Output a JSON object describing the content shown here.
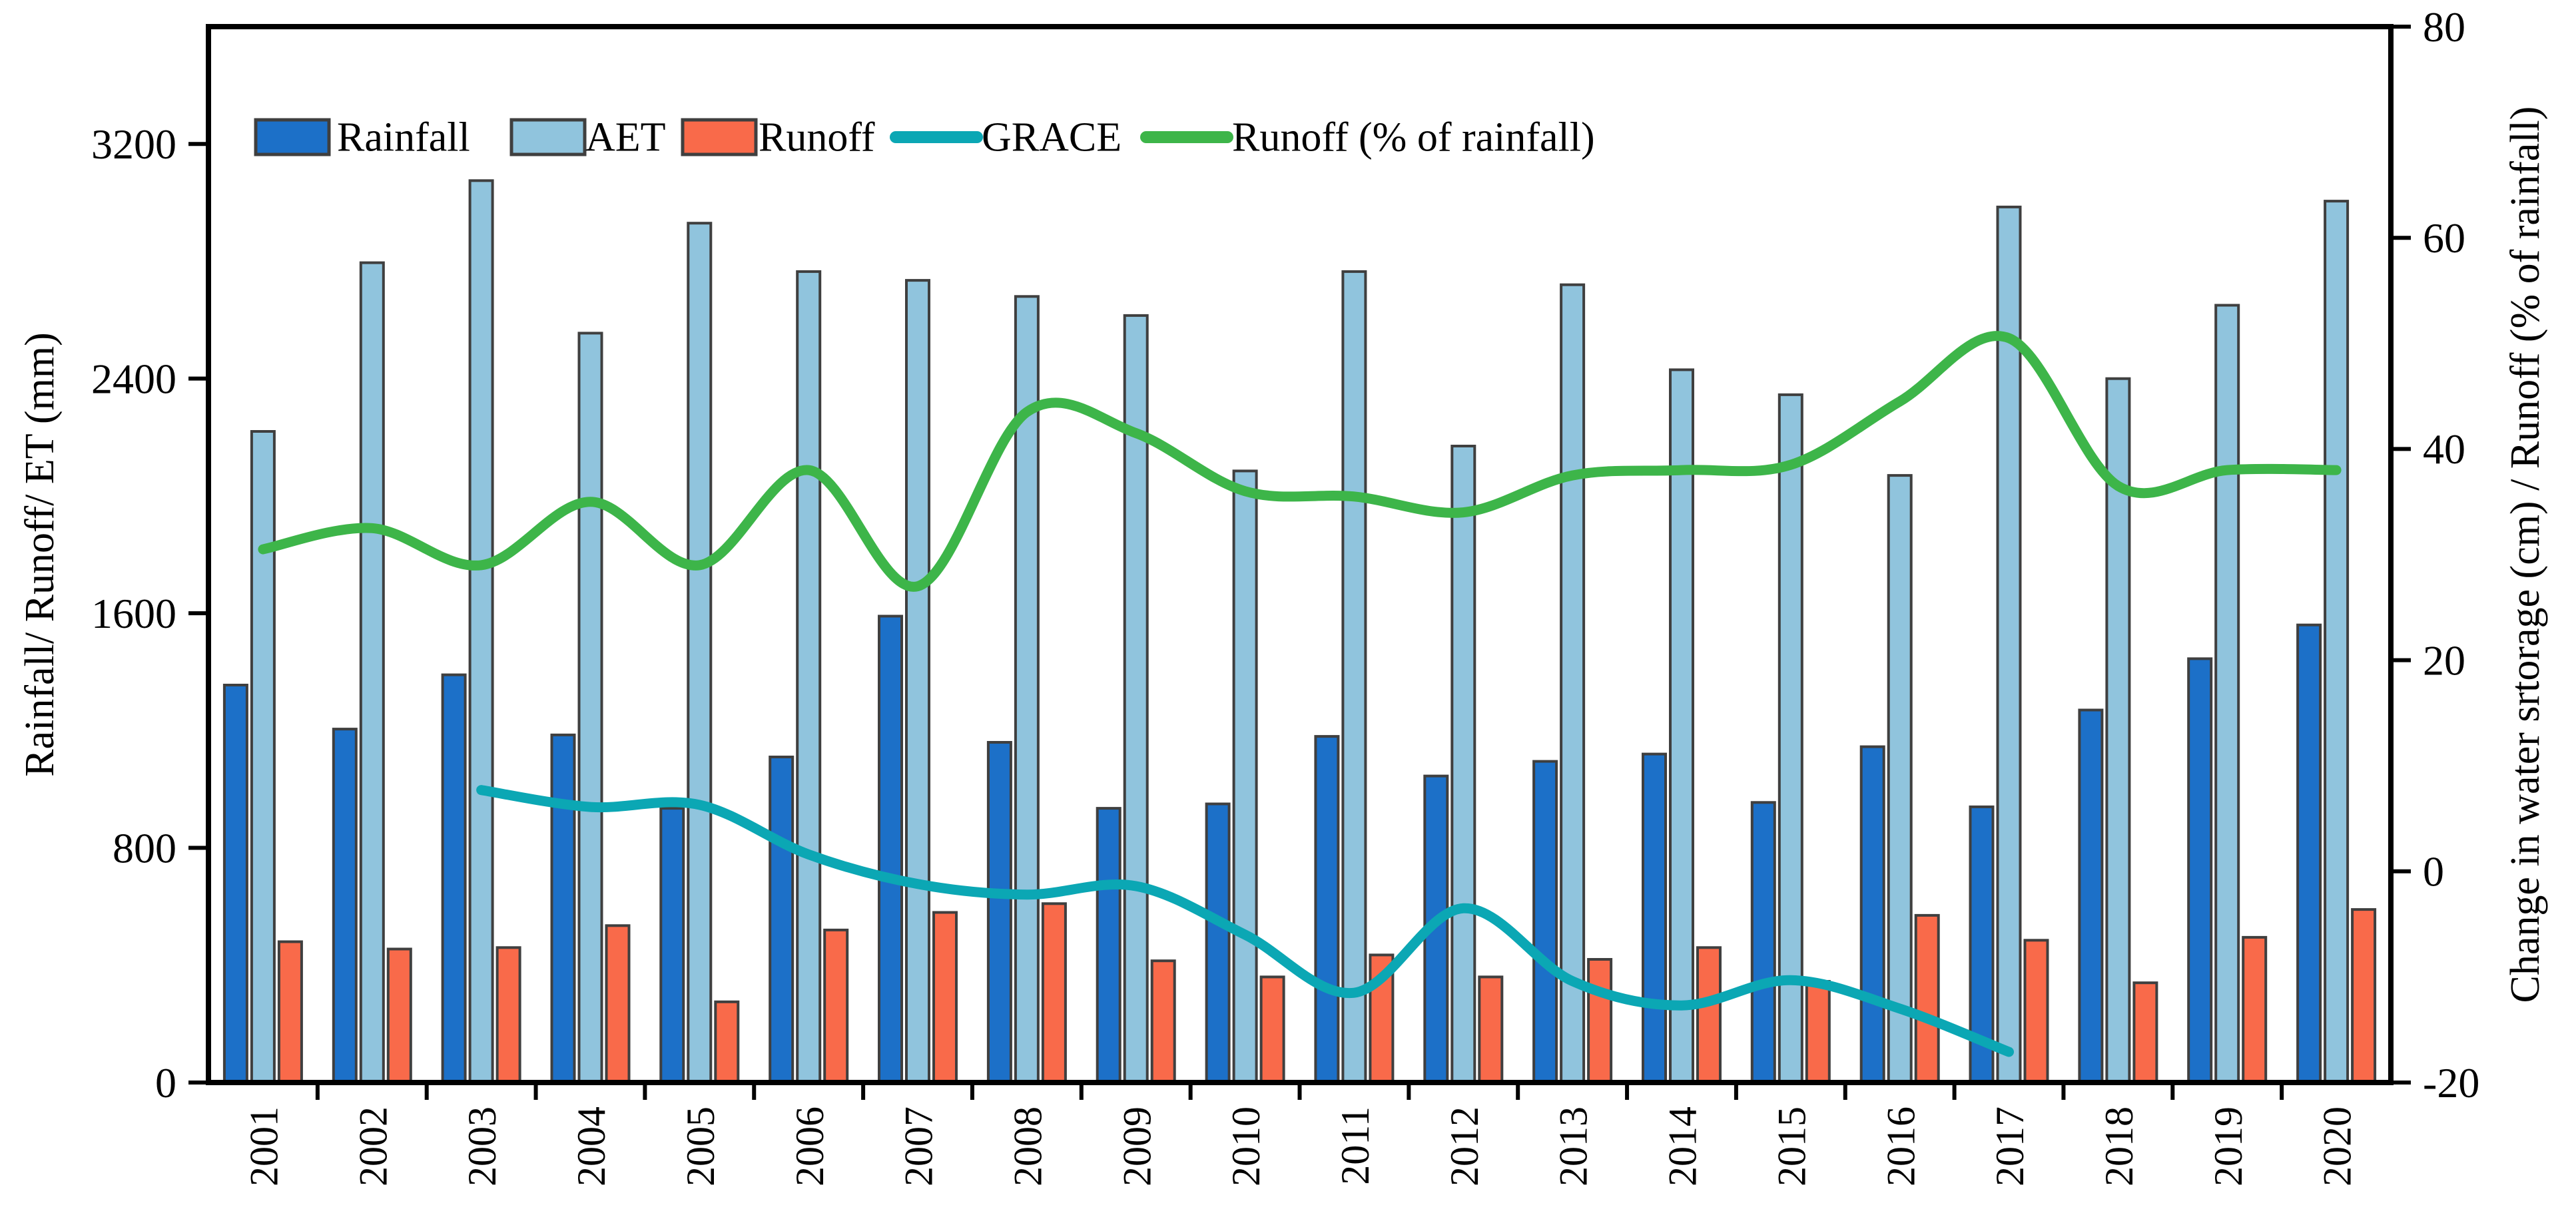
{
  "chart_data": {
    "type": "combo",
    "title": "",
    "categories": [
      "2001",
      "2002",
      "2003",
      "2004",
      "2005",
      "2006",
      "2007",
      "2008",
      "2009",
      "2010",
      "2011",
      "2012",
      "2013",
      "2014",
      "2015",
      "2016",
      "2017",
      "2018",
      "2019",
      "2020"
    ],
    "series": [
      {
        "name": "Rainfall",
        "type": "bar",
        "axis": "left",
        "color": "#1c70c8",
        "border_color": "#3f3f3f",
        "values": [
          1355,
          1205,
          1390,
          1185,
          935,
          1110,
          1590,
          1160,
          935,
          950,
          1180,
          1045,
          1095,
          1120,
          955,
          1145,
          940,
          1270,
          1445,
          1560
        ]
      },
      {
        "name": "AET",
        "type": "bar",
        "axis": "left",
        "color": "#90c4dd",
        "border_color": "#3f3f3f",
        "values": [
          2220,
          2795,
          3075,
          2555,
          2930,
          2765,
          2735,
          2680,
          2615,
          2085,
          2765,
          2170,
          2720,
          2430,
          2345,
          2070,
          2985,
          2400,
          2650,
          3005
        ]
      },
      {
        "name": "Runoff",
        "type": "bar",
        "axis": "left",
        "color": "#f96a4a",
        "border_color": "#3f3f3f",
        "values": [
          480,
          455,
          460,
          535,
          275,
          520,
          580,
          610,
          415,
          360,
          435,
          360,
          420,
          460,
          345,
          570,
          485,
          340,
          495,
          590
        ]
      },
      {
        "name": "GRACE",
        "type": "line",
        "axis": "right",
        "color": "#0ba7b4",
        "start_category": "2003",
        "end_category": "2017",
        "start_index": 2,
        "values": [
          7.7,
          6.1,
          6.3,
          1.6,
          -1.2,
          -2.2,
          -1.4,
          -6,
          -11.5,
          -3.5,
          -10.4,
          -12.7,
          -10.3,
          -13,
          -17.1
        ]
      },
      {
        "name": "Runoff (% of rainfall)",
        "type": "line",
        "axis": "right",
        "color": "#3db549",
        "start_index": 0,
        "values": [
          30.5,
          32.5,
          29,
          35,
          29,
          38,
          27,
          43.5,
          41.5,
          36,
          35.5,
          34,
          37.5,
          38,
          38.5,
          44.5,
          50.5,
          36.5,
          38,
          38
        ]
      }
    ],
    "left_axis": {
      "title": "Rainfall/ Runoff/ ET (mm)",
      "min": 0,
      "max": 3600,
      "tick_labels": [
        "0",
        "800",
        "1600",
        "2400",
        "3200"
      ],
      "tick_values": [
        0,
        800,
        1600,
        2400,
        3200
      ]
    },
    "right_axis": {
      "title": "Change in water srtorage (cm) / Runoff (% of rainfall)",
      "min": -20,
      "max": 80,
      "tick_labels": [
        "80",
        "60",
        "40",
        "20",
        "0",
        "-20"
      ],
      "tick_values": [
        80,
        60,
        40,
        20,
        0,
        -20
      ]
    },
    "legend": {
      "position": "top-left-inside",
      "items": [
        {
          "label": "Rainfall",
          "swatch": "rect",
          "series_index": 0
        },
        {
          "label": "AET",
          "swatch": "rect",
          "series_index": 1
        },
        {
          "label": "Runoff",
          "swatch": "rect",
          "series_index": 2
        },
        {
          "label": "GRACE",
          "swatch": "line",
          "series_index": 3
        },
        {
          "label": "Runoff (% of rainfall)",
          "swatch": "line",
          "series_index": 4
        }
      ]
    },
    "grid": false,
    "plot_border": true,
    "x_tick_style": "between-categories"
  }
}
